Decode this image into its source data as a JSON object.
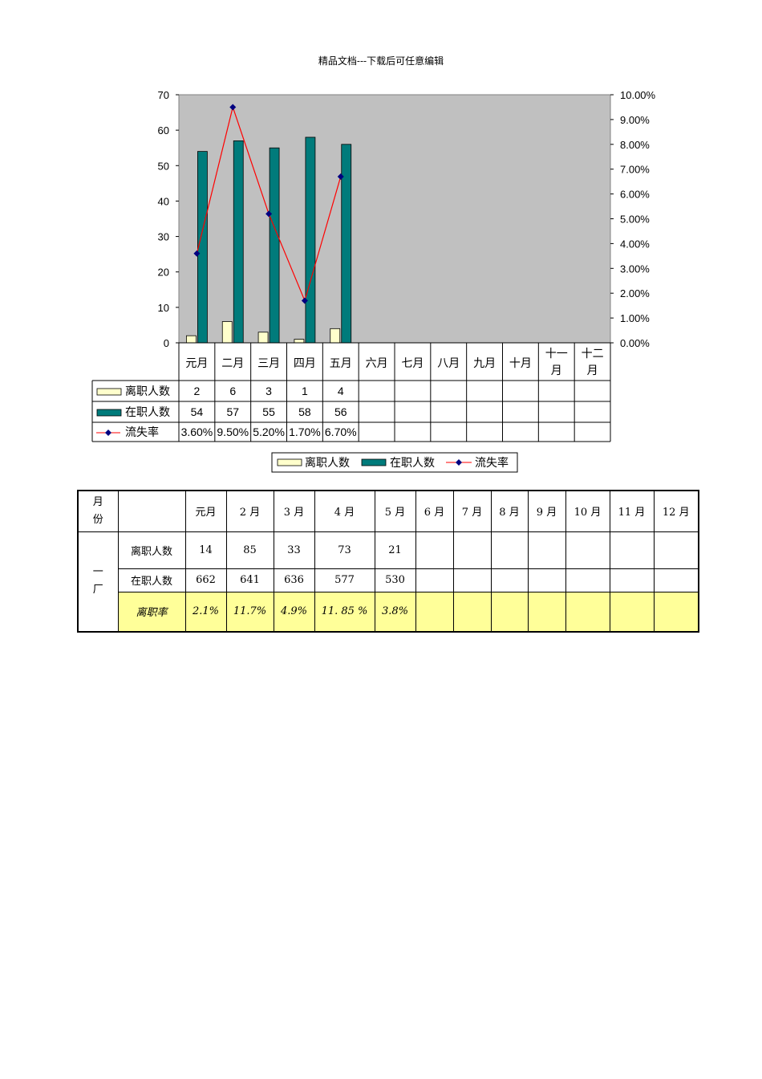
{
  "header": "精品文档---下载后可任意编辑",
  "chart_data": {
    "type": "bar",
    "categories": [
      "元月",
      "二月",
      "三月",
      "四月",
      "五月",
      "六月",
      "七月",
      "八月",
      "九月",
      "十月",
      "十一月",
      "十二月"
    ],
    "category_labels": [
      [
        "元月"
      ],
      [
        "二月"
      ],
      [
        "三月"
      ],
      [
        "四月"
      ],
      [
        "五月"
      ],
      [
        "六月"
      ],
      [
        "七月"
      ],
      [
        "八月"
      ],
      [
        "九月"
      ],
      [
        "十月"
      ],
      [
        "十一",
        "月"
      ],
      [
        "十二",
        "月"
      ]
    ],
    "series": [
      {
        "name": "离职人数",
        "kind": "bar",
        "axis": "left",
        "color": "#ffffcc",
        "values": [
          2,
          6,
          3,
          1,
          4,
          null,
          null,
          null,
          null,
          null,
          null,
          null
        ],
        "labels": [
          "2",
          "6",
          "3",
          "1",
          "4",
          "",
          "",
          "",
          "",
          "",
          "",
          ""
        ]
      },
      {
        "name": "在职人数",
        "kind": "bar",
        "axis": "left",
        "color": "#007b7b",
        "values": [
          54,
          57,
          55,
          58,
          56,
          null,
          null,
          null,
          null,
          null,
          null,
          null
        ],
        "labels": [
          "54",
          "57",
          "55",
          "58",
          "56",
          "",
          "",
          "",
          "",
          "",
          "",
          ""
        ]
      },
      {
        "name": "流失率",
        "kind": "line",
        "axis": "right",
        "color": "#ff0000",
        "marker_color": "#000080",
        "values": [
          3.6,
          9.5,
          5.2,
          1.7,
          6.7,
          null,
          null,
          null,
          null,
          null,
          null,
          null
        ],
        "labels": [
          "3.60%",
          "9.50%",
          "5.20%",
          "1.70%",
          "6.70%",
          "",
          "",
          "",
          "",
          "",
          "",
          ""
        ]
      }
    ],
    "ylim": [
      0,
      70
    ],
    "y_ticks": [
      "0",
      "10",
      "20",
      "30",
      "40",
      "50",
      "60",
      "70"
    ],
    "y2lim": [
      0,
      10
    ],
    "y2_ticks": [
      "0.00%",
      "1.00%",
      "2.00%",
      "3.00%",
      "4.00%",
      "5.00%",
      "6.00%",
      "7.00%",
      "8.00%",
      "9.00%",
      "10.00%"
    ],
    "plot_background": "#c0c0c0",
    "legend_position": "bottom",
    "data_table": true
  },
  "table": {
    "header": {
      "col0": [
        "月",
        "份"
      ],
      "months": [
        "元月",
        "2 月",
        "3 月",
        "4 月",
        "5 月",
        "6 月",
        "7 月",
        "8 月",
        "9 月",
        "10 月",
        "11 月",
        "12 月"
      ]
    },
    "group_label": [
      "一",
      "厂"
    ],
    "rows": [
      {
        "label": "离职人数",
        "values": [
          "14",
          "85",
          "33",
          "73",
          "21",
          "",
          "",
          "",
          "",
          "",
          "",
          ""
        ]
      },
      {
        "label": "在职人数",
        "values": [
          "662",
          "641",
          "636",
          "577",
          "530",
          "",
          "",
          "",
          "",
          "",
          "",
          ""
        ]
      },
      {
        "label": "离职率",
        "values": [
          "2.1%",
          "11.7%",
          "4.9%",
          "11. 85 %",
          "3.8%",
          "",
          "",
          "",
          "",
          "",
          "",
          ""
        ],
        "highlight": "#ffff99"
      }
    ]
  }
}
